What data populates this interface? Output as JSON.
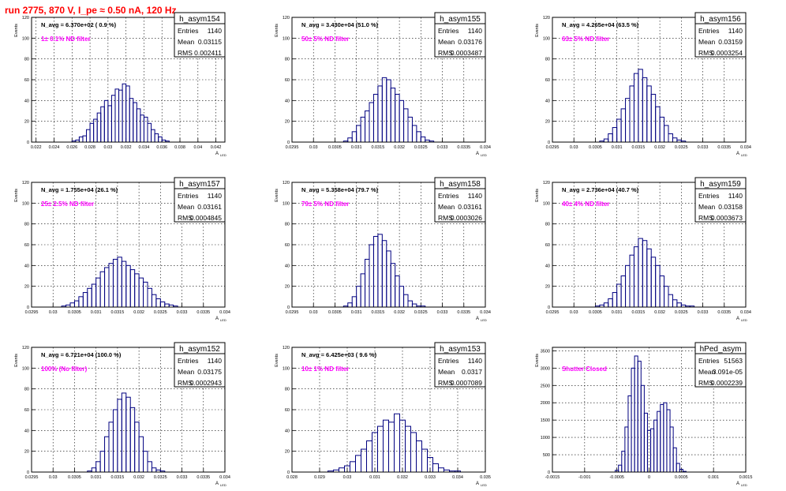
{
  "header": {
    "title": "run 2775,   870 V, I_pe ≈ 0.50 nA, 120 Hz"
  },
  "common": {
    "ylabel": "Events",
    "xlabel": "A",
    "xlabel_sub": "LED",
    "stat_keys": [
      "Entries",
      "Mean",
      "RMS"
    ]
  },
  "colors": {
    "histogram": "#000080",
    "annotation": "#ff00ff",
    "title": "#ff0000",
    "grid": "#000000"
  },
  "chart_data": [
    {
      "type": "bar",
      "name": "h_asym154",
      "navg": "N_avg = 6.370e+02 ( 0.9 %)",
      "note": "1± 0.1% ND filter",
      "stats": [
        "1140",
        "0.03115",
        "0.002411"
      ],
      "xlim": [
        0.0215,
        0.043
      ],
      "ylim": [
        0,
        120
      ],
      "xticks": [
        "0.022",
        "0.024",
        "0.026",
        "0.028",
        "0.03",
        "0.032",
        "0.034",
        "0.036",
        "0.038",
        "0.04",
        "0.042"
      ],
      "xtick_vals": [
        0.022,
        0.024,
        0.026,
        0.028,
        0.03,
        0.032,
        0.034,
        0.036,
        0.038,
        0.04,
        0.042
      ],
      "yticks": [
        "0",
        "20",
        "40",
        "60",
        "80",
        "100",
        "120"
      ],
      "x": [
        0.0262,
        0.0266,
        0.027,
        0.0274,
        0.0278,
        0.0282,
        0.0286,
        0.029,
        0.0294,
        0.0298,
        0.0302,
        0.0306,
        0.031,
        0.0314,
        0.0318,
        0.0322,
        0.0326,
        0.033,
        0.0334,
        0.0338,
        0.0342,
        0.0346,
        0.035,
        0.0354,
        0.0358,
        0.0362,
        0.0366
      ],
      "values": [
        1,
        2,
        5,
        6,
        12,
        18,
        22,
        28,
        34,
        40,
        35,
        45,
        51,
        50,
        56,
        54,
        42,
        38,
        32,
        26,
        24,
        18,
        12,
        8,
        5,
        2,
        1
      ]
    },
    {
      "type": "bar",
      "name": "h_asym155",
      "navg": "N_avg = 3.430e+04 (51.0 %)",
      "note": "50± 5% ND filter",
      "stats": [
        "1140",
        "0.03176",
        "0.0003487"
      ],
      "xlim": [
        0.0295,
        0.034
      ],
      "ylim": [
        0,
        120
      ],
      "xticks": [
        "0.0295",
        "0.03",
        "0.0305",
        "0.031",
        "0.0315",
        "0.032",
        "0.0325",
        "0.033",
        "0.0335",
        "0.034"
      ],
      "xtick_vals": [
        0.0295,
        0.03,
        0.0305,
        0.031,
        0.0315,
        0.032,
        0.0325,
        0.033,
        0.0335,
        0.034
      ],
      "yticks": [
        "0",
        "20",
        "40",
        "60",
        "80",
        "100",
        "120"
      ],
      "x": [
        0.03075,
        0.03085,
        0.03095,
        0.03105,
        0.03115,
        0.03125,
        0.03135,
        0.03145,
        0.03155,
        0.03165,
        0.03175,
        0.03185,
        0.03195,
        0.03205,
        0.03215,
        0.03225,
        0.03235,
        0.03245,
        0.03255,
        0.03265,
        0.03275
      ],
      "values": [
        1,
        4,
        10,
        16,
        24,
        30,
        38,
        46,
        54,
        62,
        60,
        52,
        46,
        40,
        32,
        24,
        16,
        10,
        5,
        2,
        1
      ]
    },
    {
      "type": "bar",
      "name": "h_asym156",
      "navg": "N_avg = 4.265e+04 (63.5 %)",
      "note": "63± 5% ND filter",
      "stats": [
        "1140",
        "0.03159",
        "0.0003254"
      ],
      "xlim": [
        0.0295,
        0.034
      ],
      "ylim": [
        0,
        120
      ],
      "xticks": [
        "0.0295",
        "0.03",
        "0.0305",
        "0.031",
        "0.0315",
        "0.032",
        "0.0325",
        "0.033",
        "0.0335",
        "0.034"
      ],
      "xtick_vals": [
        0.0295,
        0.03,
        0.0305,
        0.031,
        0.0315,
        0.032,
        0.0325,
        0.033,
        0.0335,
        0.034
      ],
      "yticks": [
        "0",
        "20",
        "40",
        "60",
        "80",
        "100",
        "120"
      ],
      "x": [
        0.03065,
        0.03075,
        0.03085,
        0.03095,
        0.03105,
        0.03115,
        0.03125,
        0.03135,
        0.03145,
        0.03155,
        0.03165,
        0.03175,
        0.03185,
        0.03195,
        0.03205,
        0.03215,
        0.03225,
        0.03235,
        0.03245,
        0.03255
      ],
      "values": [
        1,
        3,
        8,
        14,
        22,
        32,
        42,
        54,
        66,
        70,
        62,
        54,
        46,
        34,
        24,
        16,
        8,
        4,
        2,
        1
      ]
    },
    {
      "type": "bar",
      "name": "h_asym157",
      "navg": "N_avg = 1.755e+04 (26.1 %)",
      "note": "25± 2.5% ND filter",
      "stats": [
        "1140",
        "0.03161",
        "0.0004845"
      ],
      "xlim": [
        0.0295,
        0.034
      ],
      "ylim": [
        0,
        120
      ],
      "xticks": [
        "0.0295",
        "0.03",
        "0.0305",
        "0.031",
        "0.0315",
        "0.032",
        "0.0325",
        "0.033",
        "0.0335",
        "0.034"
      ],
      "xtick_vals": [
        0.0295,
        0.03,
        0.0305,
        0.031,
        0.0315,
        0.032,
        0.0325,
        0.033,
        0.0335,
        0.034
      ],
      "yticks": [
        "0",
        "20",
        "40",
        "60",
        "80",
        "100",
        "120"
      ],
      "x": [
        0.03025,
        0.03035,
        0.03045,
        0.03055,
        0.03065,
        0.03075,
        0.03085,
        0.03095,
        0.03105,
        0.03115,
        0.03125,
        0.03135,
        0.03145,
        0.03155,
        0.03165,
        0.03175,
        0.03185,
        0.03195,
        0.03205,
        0.03215,
        0.03225,
        0.03235,
        0.03245,
        0.03255,
        0.03265,
        0.03275,
        0.03285
      ],
      "values": [
        1,
        2,
        4,
        6,
        10,
        14,
        18,
        22,
        28,
        34,
        38,
        42,
        46,
        48,
        44,
        40,
        36,
        32,
        28,
        24,
        18,
        12,
        8,
        5,
        3,
        2,
        1
      ]
    },
    {
      "type": "bar",
      "name": "h_asym158",
      "navg": "N_avg = 5.358e+04 (79.7 %)",
      "note": "79± 5% ND filter",
      "stats": [
        "1140",
        "0.03161",
        "0.0003026"
      ],
      "xlim": [
        0.0295,
        0.034
      ],
      "ylim": [
        0,
        120
      ],
      "xticks": [
        "0.0295",
        "0.03",
        "0.0305",
        "0.031",
        "0.0315",
        "0.032",
        "0.0325",
        "0.033",
        "0.0335",
        "0.034"
      ],
      "xtick_vals": [
        0.0295,
        0.03,
        0.0305,
        0.031,
        0.0315,
        0.032,
        0.0325,
        0.033,
        0.0335,
        0.034
      ],
      "yticks": [
        "0",
        "20",
        "40",
        "60",
        "80",
        "100",
        "120"
      ],
      "x": [
        0.03075,
        0.03085,
        0.03095,
        0.03105,
        0.03115,
        0.03125,
        0.03135,
        0.03145,
        0.03155,
        0.03165,
        0.03175,
        0.03185,
        0.03195,
        0.03205,
        0.03215,
        0.03225,
        0.03235,
        0.03245,
        0.03255
      ],
      "values": [
        1,
        4,
        10,
        20,
        32,
        46,
        60,
        68,
        70,
        64,
        54,
        42,
        30,
        20,
        12,
        6,
        3,
        1,
        1
      ]
    },
    {
      "type": "bar",
      "name": "h_asym159",
      "navg": "N_avg = 2.736e+04 (40.7 %)",
      "note": "40± 4% ND filter",
      "stats": [
        "1140",
        "0.03158",
        "0.0003673"
      ],
      "xlim": [
        0.0295,
        0.034
      ],
      "ylim": [
        0,
        120
      ],
      "xticks": [
        "0.0295",
        "0.03",
        "0.0305",
        "0.031",
        "0.0315",
        "0.032",
        "0.0325",
        "0.033",
        "0.0335",
        "0.034"
      ],
      "xtick_vals": [
        0.0295,
        0.03,
        0.0305,
        0.031,
        0.0315,
        0.032,
        0.0325,
        0.033,
        0.0335,
        0.034
      ],
      "yticks": [
        "0",
        "20",
        "40",
        "60",
        "80",
        "100",
        "120"
      ],
      "x": [
        0.03055,
        0.03065,
        0.03075,
        0.03085,
        0.03095,
        0.03105,
        0.03115,
        0.03125,
        0.03135,
        0.03145,
        0.03155,
        0.03165,
        0.03175,
        0.03185,
        0.03195,
        0.03205,
        0.03215,
        0.03225,
        0.03235,
        0.03245,
        0.03255,
        0.03265,
        0.03275
      ],
      "values": [
        1,
        2,
        4,
        8,
        14,
        22,
        30,
        40,
        50,
        58,
        66,
        64,
        56,
        48,
        40,
        30,
        20,
        12,
        7,
        4,
        2,
        1,
        1
      ]
    },
    {
      "type": "bar",
      "name": "h_asym152",
      "navg": "N_avg = 6.721e+04 (100.0 %)",
      "note": "100% (No filter)",
      "stats": [
        "1140",
        "0.03175",
        "0.0002943"
      ],
      "xlim": [
        0.0295,
        0.034
      ],
      "ylim": [
        0,
        120
      ],
      "xticks": [
        "0.0295",
        "0.03",
        "0.0305",
        "0.031",
        "0.0315",
        "0.032",
        "0.0325",
        "0.033",
        "0.0335",
        "0.034"
      ],
      "xtick_vals": [
        0.0295,
        0.03,
        0.0305,
        0.031,
        0.0315,
        0.032,
        0.0325,
        0.033,
        0.0335,
        0.034
      ],
      "yticks": [
        "0",
        "20",
        "40",
        "60",
        "80",
        "100",
        "120"
      ],
      "x": [
        0.03085,
        0.03095,
        0.03105,
        0.03115,
        0.03125,
        0.03135,
        0.03145,
        0.03155,
        0.03165,
        0.03175,
        0.03185,
        0.03195,
        0.03205,
        0.03215,
        0.03225,
        0.03235,
        0.03245,
        0.03255
      ],
      "values": [
        1,
        4,
        10,
        20,
        34,
        48,
        60,
        70,
        76,
        72,
        62,
        48,
        34,
        20,
        10,
        4,
        2,
        1
      ]
    },
    {
      "type": "bar",
      "name": "h_asym153",
      "navg": "N_avg = 6.425e+03 ( 9.6 %)",
      "note": "10± 1% ND filter",
      "stats": [
        "1140",
        "0.0317",
        "0.0007089"
      ],
      "xlim": [
        0.028,
        0.035
      ],
      "ylim": [
        0,
        120
      ],
      "xticks": [
        "0.028",
        "0.029",
        "0.03",
        "0.031",
        "0.032",
        "0.033",
        "0.034",
        "0.035"
      ],
      "xtick_vals": [
        0.028,
        0.029,
        0.03,
        0.031,
        0.032,
        0.033,
        0.034,
        0.035
      ],
      "yticks": [
        "0",
        "20",
        "40",
        "60",
        "80",
        "100",
        "120"
      ],
      "x": [
        0.0294,
        0.0296,
        0.0298,
        0.03,
        0.0302,
        0.0304,
        0.0306,
        0.0308,
        0.031,
        0.0312,
        0.0314,
        0.0316,
        0.0318,
        0.032,
        0.0322,
        0.0324,
        0.0326,
        0.0328,
        0.033,
        0.0332,
        0.0334,
        0.0336,
        0.0338,
        0.034
      ],
      "values": [
        1,
        2,
        4,
        6,
        10,
        16,
        22,
        30,
        38,
        44,
        50,
        48,
        56,
        50,
        44,
        38,
        30,
        22,
        14,
        8,
        4,
        2,
        1,
        1
      ]
    },
    {
      "type": "bar",
      "name": "hPed_asym",
      "navg": "",
      "note": "Shutter Closed",
      "stats": [
        "51563",
        "3.091e-05",
        "0.0002239"
      ],
      "xlim": [
        -0.0015,
        0.0015
      ],
      "ylim": [
        0,
        3600
      ],
      "xticks": [
        "-0.0015",
        "-0.001",
        "-0.0005",
        "0",
        "0.0005",
        "0.001",
        "0.0015"
      ],
      "xtick_vals": [
        -0.0015,
        -0.001,
        -0.0005,
        0,
        0.0005,
        0.001,
        0.0015
      ],
      "yticks": [
        "0",
        "500",
        "1000",
        "1500",
        "2000",
        "2500",
        "3000",
        "3500"
      ],
      "x": [
        -0.0005,
        -0.00045,
        -0.0004,
        -0.00035,
        -0.0003,
        -0.00025,
        -0.0002,
        -0.00015,
        -0.0001,
        -5e-05,
        0.0,
        5e-05,
        0.0001,
        0.00015,
        0.0002,
        0.00025,
        0.0003,
        0.00035,
        0.0004,
        0.00045,
        0.0005,
        0.00055
      ],
      "values": [
        50,
        200,
        600,
        1300,
        2200,
        3000,
        3350,
        3200,
        2500,
        1700,
        1200,
        1250,
        1500,
        1750,
        1950,
        2000,
        1800,
        1300,
        700,
        250,
        80,
        20
      ]
    }
  ]
}
